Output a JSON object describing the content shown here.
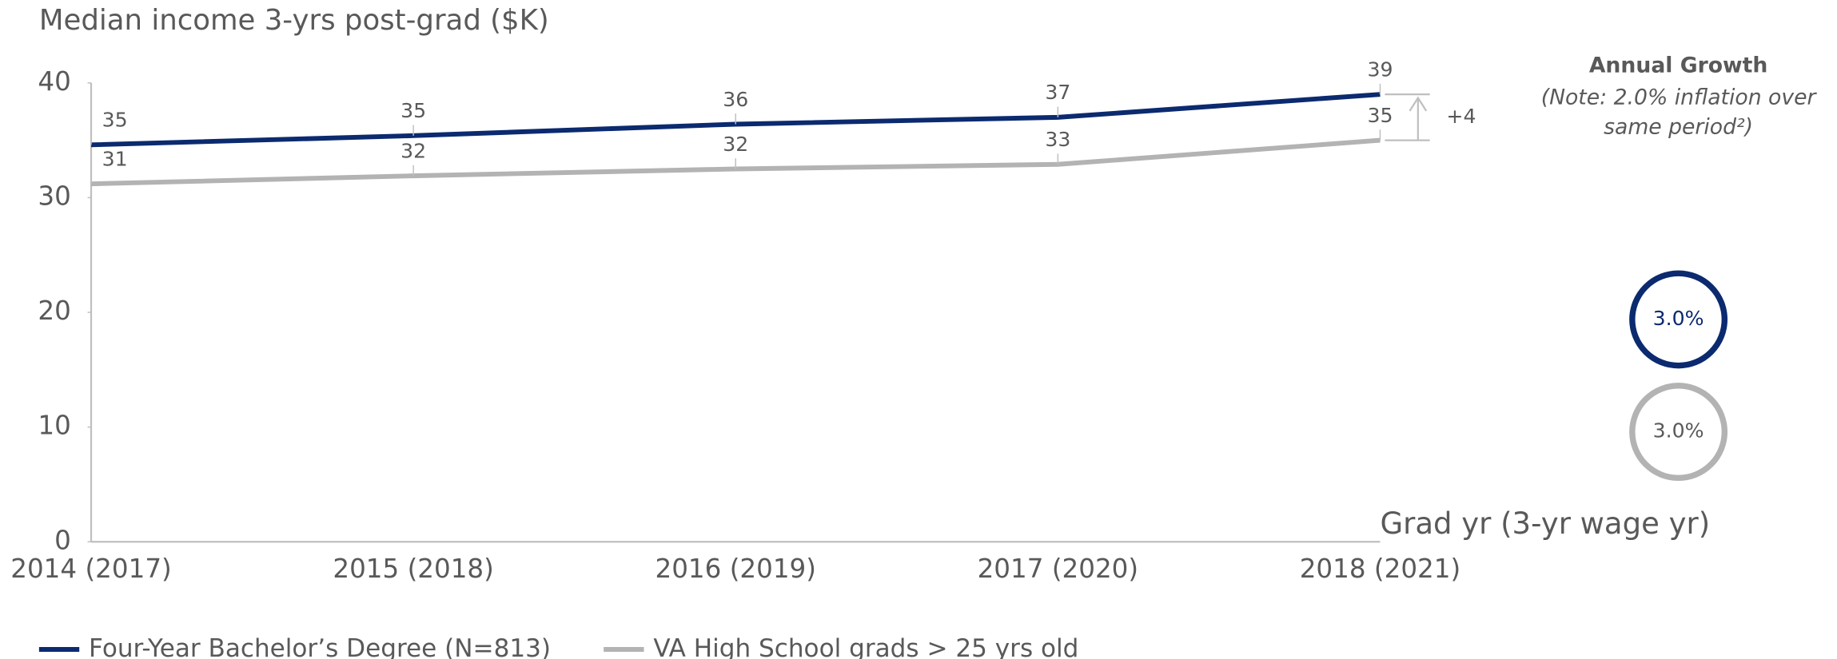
{
  "chart_data": {
    "type": "line",
    "title": "Median income 3-yrs post-grad ($K)",
    "x_label": "Grad yr (3-yr wage yr)",
    "categories": [
      "2014 (2017)",
      "2015 (2018)",
      "2016 (2019)",
      "2017 (2020)",
      "2018 (2021)"
    ],
    "series": [
      {
        "name": "Four-Year Bachelor’s Degree (N=813)",
        "color": "#0b2a6f",
        "values": [
          34.6,
          35.4,
          36.4,
          37.0,
          39.0
        ],
        "value_labels": [
          "35",
          "35",
          "36",
          "37",
          "39"
        ]
      },
      {
        "name": "VA High School grads > 25 yrs old",
        "color": "#b3b3b3",
        "values": [
          31.2,
          31.9,
          32.5,
          32.9,
          35.0
        ],
        "value_labels": [
          "31",
          "32",
          "32",
          "33",
          "35"
        ]
      }
    ],
    "ylim": [
      0,
      40
    ],
    "yticks": [
      0,
      10,
      20,
      30,
      40
    ],
    "difference_label": "+4",
    "growth_title": "Annual Growth",
    "growth_note": [
      "(Note: 2.0% inflation over",
      "same period²)"
    ],
    "growth_labels": [
      "3.0%",
      "3.0%"
    ]
  }
}
